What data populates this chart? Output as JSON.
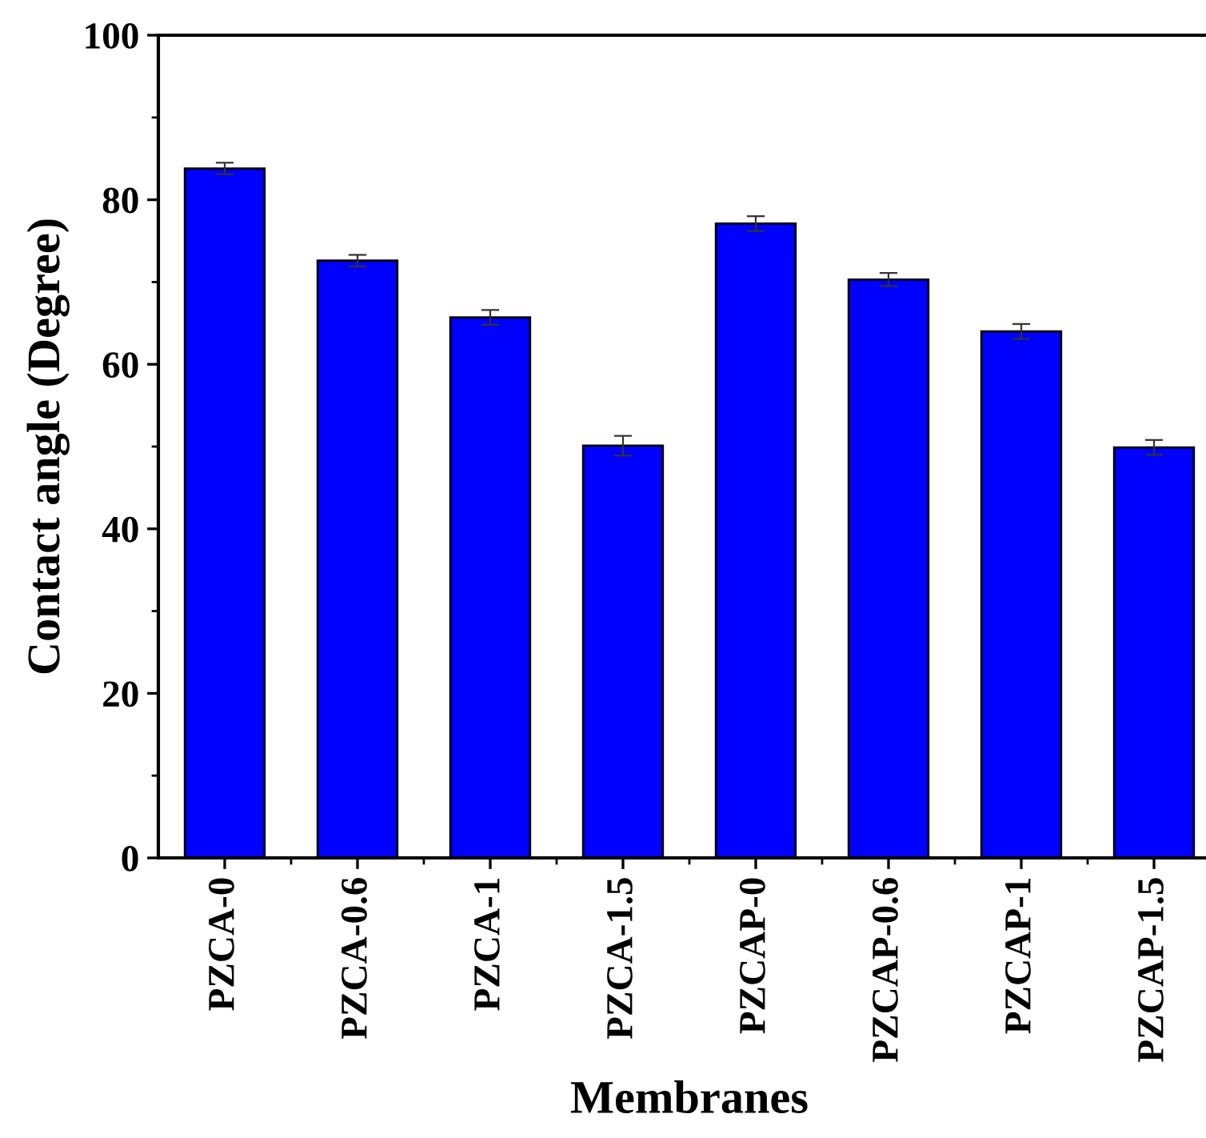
{
  "chart_data": {
    "type": "bar",
    "xlabel": "Membranes",
    "ylabel": "Contact angle (Degree)",
    "categories": [
      "PZCA-0",
      "PZCA-0.6",
      "PZCA-1",
      "PZCA-1.5",
      "PZCAP-0",
      "PZCAP-0.6",
      "PZCAP-1",
      "PZCAP-1.5"
    ],
    "values": [
      83.8,
      72.6,
      65.7,
      50.1,
      77.1,
      70.3,
      64.0,
      49.9
    ],
    "errors": [
      0.7,
      0.7,
      0.9,
      1.2,
      0.9,
      0.8,
      0.9,
      0.9
    ],
    "color": "#0000ff",
    "ylim": [
      0,
      100
    ],
    "yticks": [
      0,
      20,
      40,
      60,
      80,
      100
    ],
    "grid": false,
    "legend": false
  }
}
